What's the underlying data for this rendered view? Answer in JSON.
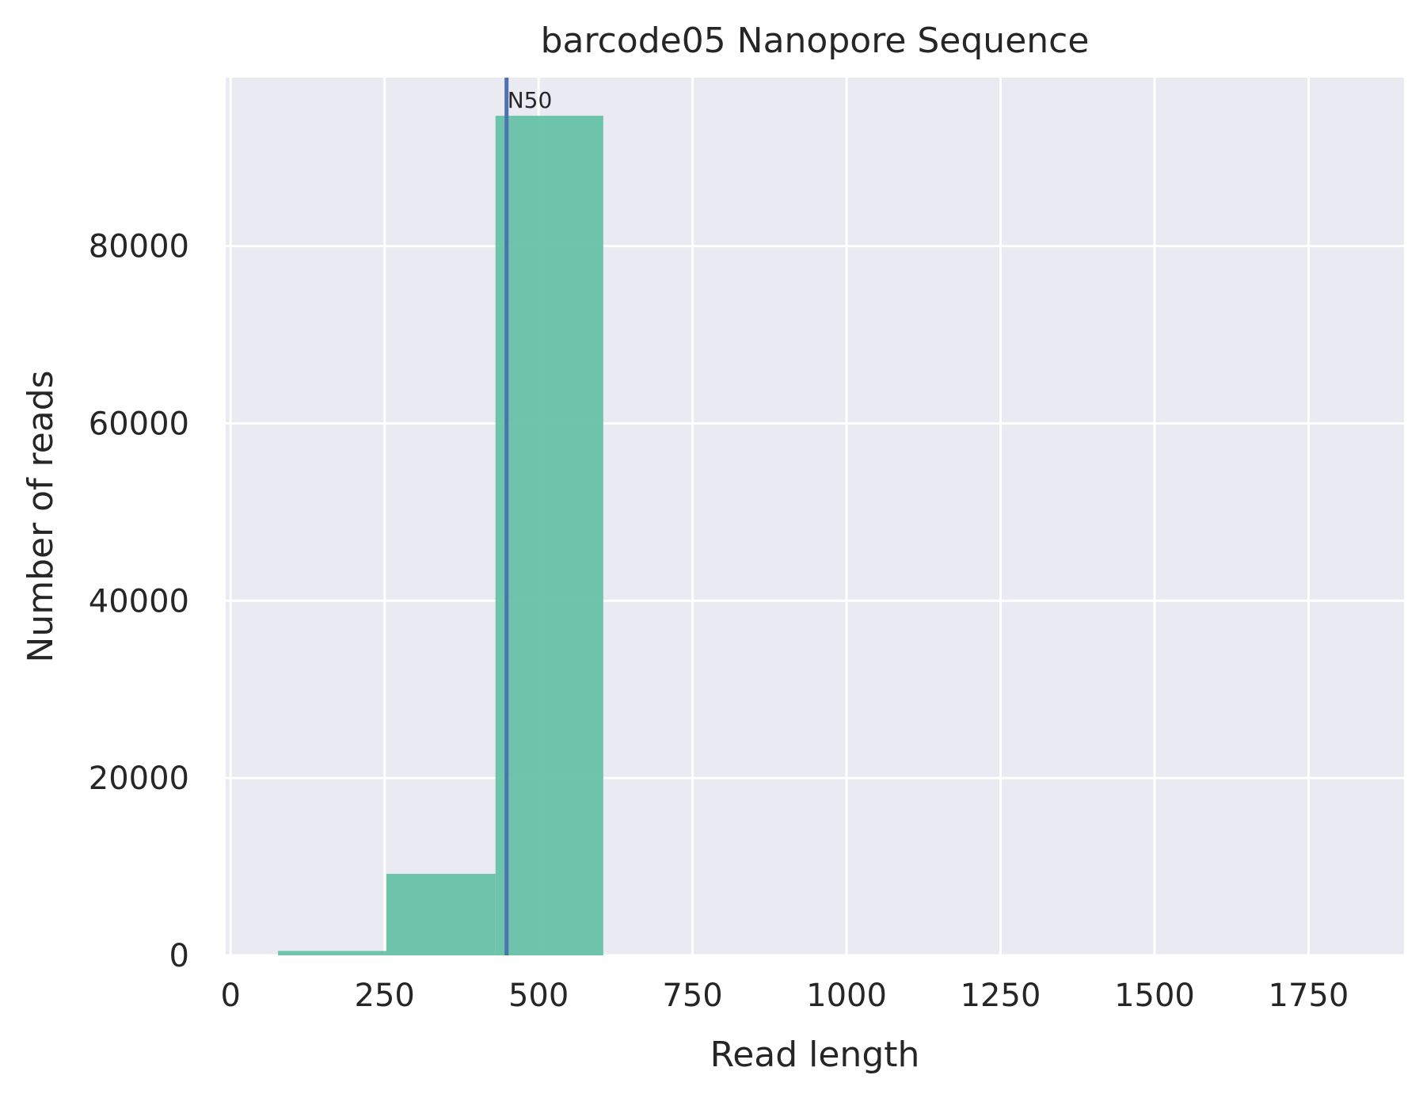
{
  "chart_data": {
    "type": "bar",
    "title": "barcode05 Nanopore Sequence",
    "xlabel": "Read length",
    "ylabel": "Number of reads",
    "xlim": [
      -8,
      1905
    ],
    "ylim": [
      0,
      99000
    ],
    "xticks": [
      0,
      250,
      500,
      750,
      1000,
      1250,
      1500,
      1750
    ],
    "xtick_labels": [
      "0",
      "250",
      "500",
      "750",
      "1000",
      "1250",
      "1500",
      "1750"
    ],
    "yticks": [
      0,
      20000,
      40000,
      60000,
      80000
    ],
    "ytick_labels": [
      "0",
      "20000",
      "40000",
      "60000",
      "80000"
    ],
    "grid": true,
    "bins": [
      {
        "start": 77,
        "end": 253,
        "count": 500
      },
      {
        "start": 253,
        "end": 430,
        "count": 9200
      },
      {
        "start": 430,
        "end": 605,
        "count": 94700
      }
    ],
    "bar_color": "#66c2a5",
    "n50_line": {
      "x": 448,
      "label": "N50",
      "color": "#4c72b0"
    }
  }
}
